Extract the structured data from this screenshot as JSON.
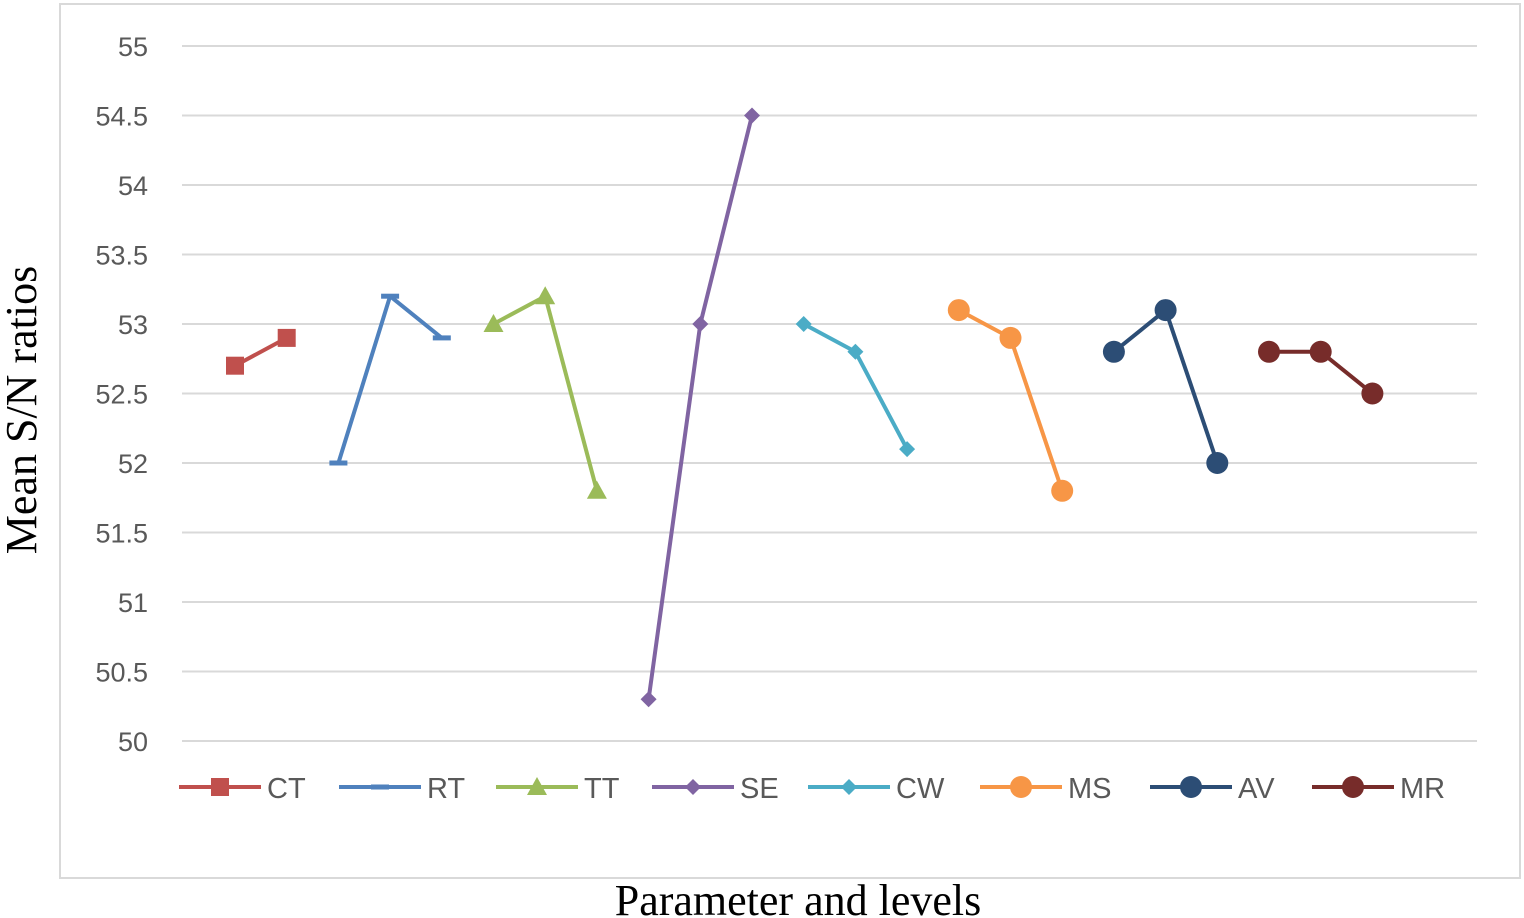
{
  "chart_data": {
    "type": "line",
    "title": "",
    "xlabel": "Parameter and levels",
    "ylabel": "Mean S/N ratios",
    "ylim": [
      50,
      55
    ],
    "yticks": [
      50,
      50.5,
      51,
      51.5,
      52,
      52.5,
      53,
      53.5,
      54,
      54.5,
      55
    ],
    "ytick_labels": [
      "50",
      "50.5",
      "51",
      "51.5",
      "52",
      "52.5",
      "53",
      "53.5",
      "54",
      "54.5",
      "55"
    ],
    "grid": true,
    "legend_position": "bottom",
    "series": [
      {
        "name": "CT",
        "color": "#C0504D",
        "marker": "square",
        "x": [
          1,
          2
        ],
        "values": [
          52.7,
          52.9
        ]
      },
      {
        "name": "RT",
        "color": "#4F81BD",
        "marker": "dash",
        "x": [
          3,
          4,
          5
        ],
        "values": [
          52.0,
          53.2,
          52.9
        ]
      },
      {
        "name": "TT",
        "color": "#9BBB59",
        "marker": "triangle",
        "x": [
          6,
          7,
          8
        ],
        "values": [
          53.0,
          53.2,
          51.8
        ]
      },
      {
        "name": "SE",
        "color": "#8064A2",
        "marker": "diamond",
        "x": [
          9,
          10,
          11
        ],
        "values": [
          50.3,
          53.0,
          54.5
        ]
      },
      {
        "name": "CW",
        "color": "#4BACC6",
        "marker": "diamond",
        "x": [
          12,
          13,
          14
        ],
        "values": [
          53.0,
          52.8,
          52.1
        ]
      },
      {
        "name": "MS",
        "color": "#F79646",
        "marker": "circle",
        "x": [
          15,
          16,
          17
        ],
        "values": [
          53.1,
          52.9,
          51.8
        ]
      },
      {
        "name": "AV",
        "color": "#2C4D75",
        "marker": "circle",
        "x": [
          18,
          19,
          20
        ],
        "values": [
          52.8,
          53.1,
          52.0
        ]
      },
      {
        "name": "MR",
        "color": "#772C2A",
        "marker": "circle",
        "x": [
          21,
          22,
          23
        ],
        "values": [
          52.8,
          52.8,
          52.5
        ]
      }
    ]
  }
}
